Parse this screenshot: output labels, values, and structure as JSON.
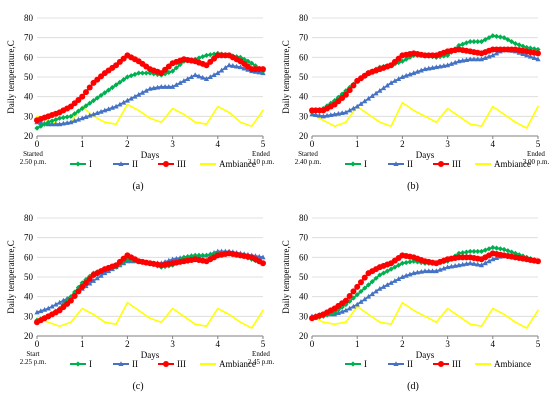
{
  "figure": {
    "panel_labels": [
      "(a)",
      "(b)",
      "(c)",
      "(d)"
    ]
  },
  "colors": {
    "I": "#00b050",
    "II": "#4472c4",
    "III": "#ff0000",
    "Ambiance": "#ffff00",
    "grid": "#d9d9d9",
    "axis": "#7f7f7f"
  },
  "legend": [
    "I",
    "II",
    "III",
    "Ambiance"
  ],
  "chart_data": [
    {
      "type": "line",
      "panel": "(a)",
      "ylabel": "Daily temperature,C",
      "xlabel": "Days",
      "xlim": [
        0,
        5
      ],
      "ylim": [
        20,
        80
      ],
      "xticks": [
        0,
        1,
        2,
        3,
        4,
        5
      ],
      "yticks": [
        20,
        30,
        40,
        50,
        60,
        70,
        80
      ],
      "grid": "horizontal",
      "legend_position": "bottom",
      "start_note": [
        "Started",
        "2.50 p.m."
      ],
      "end_note": [
        "Ended",
        "3.10 p.m."
      ],
      "series": [
        {
          "name": "I",
          "x": [
            0,
            0.25,
            0.5,
            0.75,
            1,
            1.25,
            1.5,
            1.75,
            2,
            2.25,
            2.5,
            2.75,
            3,
            3.25,
            3.5,
            3.75,
            4,
            4.25,
            4.5,
            4.75,
            5
          ],
          "y": [
            24,
            27,
            29,
            30,
            34,
            38,
            42,
            46,
            50,
            52,
            52,
            51,
            53,
            58,
            59,
            61,
            62,
            61,
            60,
            57,
            53
          ]
        },
        {
          "name": "II",
          "x": [
            0,
            0.25,
            0.5,
            0.75,
            1,
            1.25,
            1.5,
            1.75,
            2,
            2.25,
            2.5,
            2.75,
            3,
            3.25,
            3.5,
            3.75,
            4,
            4.25,
            4.5,
            4.75,
            5
          ],
          "y": [
            27,
            26,
            26,
            27,
            29,
            31,
            33,
            35,
            38,
            41,
            44,
            45,
            45,
            48,
            51,
            49,
            52,
            56,
            55,
            53,
            52
          ]
        },
        {
          "name": "III",
          "x": [
            0,
            0.25,
            0.5,
            0.75,
            1,
            1.25,
            1.5,
            1.75,
            2,
            2.25,
            2.5,
            2.75,
            3,
            3.25,
            3.5,
            3.75,
            4,
            4.25,
            4.5,
            4.75,
            5
          ],
          "y": [
            28,
            30,
            32,
            35,
            40,
            47,
            52,
            56,
            61,
            58,
            54,
            52,
            57,
            59,
            58,
            56,
            61,
            61,
            58,
            54,
            54
          ]
        },
        {
          "name": "Ambiance",
          "x": [
            0,
            0.25,
            0.5,
            0.75,
            1,
            1.25,
            1.5,
            1.75,
            2,
            2.25,
            2.5,
            2.75,
            3,
            3.25,
            3.5,
            3.75,
            4,
            4.25,
            4.5,
            4.75,
            5
          ],
          "y": [
            30,
            28,
            26,
            27,
            35,
            30,
            27,
            26,
            36,
            33,
            29,
            27,
            34,
            31,
            27,
            26,
            35,
            32,
            27,
            25,
            33
          ]
        }
      ]
    },
    {
      "type": "line",
      "panel": "(b)",
      "ylabel": "Daily temperature,C",
      "xlabel": "Days",
      "xlim": [
        0,
        5
      ],
      "ylim": [
        20,
        80
      ],
      "xticks": [
        0,
        1,
        2,
        3,
        4,
        5
      ],
      "yticks": [
        20,
        30,
        40,
        50,
        60,
        70,
        80
      ],
      "grid": "horizontal",
      "legend_position": "bottom",
      "start_note": [
        "Started",
        "2.40 p.m."
      ],
      "end_note": [
        "Ended",
        "3.00 p.m."
      ],
      "series": [
        {
          "name": "I",
          "x": [
            0,
            0.25,
            0.5,
            0.75,
            1,
            1.25,
            1.5,
            1.75,
            2,
            2.25,
            2.5,
            2.75,
            3,
            3.25,
            3.5,
            3.75,
            4,
            4.25,
            4.5,
            4.75,
            5
          ],
          "y": [
            32,
            34,
            38,
            43,
            48,
            52,
            55,
            56,
            58,
            61,
            61,
            60,
            61,
            66,
            68,
            68,
            71,
            70,
            67,
            65,
            64
          ]
        },
        {
          "name": "II",
          "x": [
            0,
            0.25,
            0.5,
            0.75,
            1,
            1.25,
            1.5,
            1.75,
            2,
            2.25,
            2.5,
            2.75,
            3,
            3.25,
            3.5,
            3.75,
            4,
            4.25,
            4.5,
            4.75,
            5
          ],
          "y": [
            31,
            30,
            31,
            32,
            35,
            39,
            43,
            47,
            50,
            52,
            54,
            55,
            56,
            58,
            59,
            59,
            61,
            64,
            63,
            61,
            59
          ]
        },
        {
          "name": "III",
          "x": [
            0,
            0.25,
            0.5,
            0.75,
            1,
            1.25,
            1.5,
            1.75,
            2,
            2.25,
            2.5,
            2.75,
            3,
            3.25,
            3.5,
            3.75,
            4,
            4.25,
            4.5,
            4.75,
            5
          ],
          "y": [
            33,
            33,
            36,
            41,
            48,
            52,
            54,
            56,
            61,
            62,
            61,
            61,
            63,
            64,
            63,
            62,
            64,
            64,
            64,
            63,
            62
          ]
        },
        {
          "name": "Ambiance",
          "x": [
            0,
            0.25,
            0.5,
            0.75,
            1,
            1.25,
            1.5,
            1.75,
            2,
            2.25,
            2.5,
            2.75,
            3,
            3.25,
            3.5,
            3.75,
            4,
            4.25,
            4.5,
            4.75,
            5
          ],
          "y": [
            31,
            28,
            25,
            27,
            35,
            31,
            27,
            25,
            37,
            33,
            30,
            27,
            34,
            30,
            26,
            25,
            35,
            31,
            27,
            24,
            35
          ]
        }
      ]
    },
    {
      "type": "line",
      "panel": "(c)",
      "ylabel": "Daily temperature,C",
      "xlabel": "Days",
      "xlim": [
        0,
        5
      ],
      "ylim": [
        20,
        80
      ],
      "xticks": [
        0,
        1,
        2,
        3,
        4,
        5
      ],
      "yticks": [
        20,
        30,
        40,
        50,
        60,
        70,
        80
      ],
      "grid": "horizontal",
      "legend_position": "bottom",
      "start_note": [
        "Start",
        "2.25 p.m."
      ],
      "end_note": [
        "Ended",
        "2.45 p.m."
      ],
      "series": [
        {
          "name": "I",
          "x": [
            0,
            0.25,
            0.5,
            0.75,
            1,
            1.25,
            1.5,
            1.75,
            2,
            2.25,
            2.5,
            2.75,
            3,
            3.25,
            3.5,
            3.75,
            4,
            4.25,
            4.5,
            4.75,
            5
          ],
          "y": [
            28,
            30,
            34,
            40,
            47,
            52,
            54,
            55,
            59,
            58,
            57,
            55,
            56,
            60,
            61,
            61,
            62,
            62,
            61,
            59,
            57
          ]
        },
        {
          "name": "II",
          "x": [
            0,
            0.25,
            0.5,
            0.75,
            1,
            1.25,
            1.5,
            1.75,
            2,
            2.25,
            2.5,
            2.75,
            3,
            3.25,
            3.5,
            3.75,
            4,
            4.25,
            4.5,
            4.75,
            5
          ],
          "y": [
            32,
            34,
            37,
            40,
            44,
            48,
            52,
            55,
            58,
            58,
            57,
            57,
            59,
            60,
            61,
            61,
            63,
            63,
            62,
            61,
            60
          ]
        },
        {
          "name": "III",
          "x": [
            0,
            0.25,
            0.5,
            0.75,
            1,
            1.25,
            1.5,
            1.75,
            2,
            2.25,
            2.5,
            2.75,
            3,
            3.25,
            3.5,
            3.75,
            4,
            4.25,
            4.5,
            4.75,
            5
          ],
          "y": [
            27,
            30,
            33,
            38,
            45,
            51,
            54,
            56,
            61,
            58,
            57,
            56,
            57,
            58,
            59,
            58,
            61,
            62,
            61,
            60,
            57
          ]
        },
        {
          "name": "Ambiance",
          "x": [
            0,
            0.25,
            0.5,
            0.75,
            1,
            1.25,
            1.5,
            1.75,
            2,
            2.25,
            2.5,
            2.75,
            3,
            3.25,
            3.5,
            3.75,
            4,
            4.25,
            4.5,
            4.75,
            5
          ],
          "y": [
            29,
            27,
            25,
            27,
            34,
            31,
            27,
            26,
            37,
            33,
            29,
            27,
            34,
            30,
            26,
            25,
            34,
            31,
            27,
            24,
            33
          ]
        }
      ]
    },
    {
      "type": "line",
      "panel": "(d)",
      "ylabel": "Daily temperature,C",
      "xlabel": "Days",
      "xlim": [
        0,
        5
      ],
      "ylim": [
        20,
        80
      ],
      "xticks": [
        0,
        1,
        2,
        3,
        4,
        5
      ],
      "yticks": [
        20,
        30,
        40,
        50,
        60,
        70,
        80
      ],
      "grid": "horizontal",
      "legend_position": "bottom",
      "series": [
        {
          "name": "I",
          "x": [
            0,
            0.25,
            0.5,
            0.75,
            1,
            1.25,
            1.5,
            1.75,
            2,
            2.25,
            2.5,
            2.75,
            3,
            3.25,
            3.5,
            3.75,
            4,
            4.25,
            4.5,
            4.75,
            5
          ],
          "y": [
            29,
            30,
            32,
            36,
            41,
            46,
            51,
            54,
            57,
            58,
            57,
            57,
            58,
            62,
            63,
            63,
            65,
            64,
            62,
            60,
            58
          ]
        },
        {
          "name": "II",
          "x": [
            0,
            0.25,
            0.5,
            0.75,
            1,
            1.25,
            1.5,
            1.75,
            2,
            2.25,
            2.5,
            2.75,
            3,
            3.25,
            3.5,
            3.75,
            4,
            4.25,
            4.5,
            4.75,
            5
          ],
          "y": [
            30,
            31,
            31,
            33,
            36,
            40,
            44,
            47,
            50,
            52,
            53,
            53,
            55,
            56,
            57,
            56,
            59,
            61,
            60,
            59,
            58
          ]
        },
        {
          "name": "III",
          "x": [
            0,
            0.25,
            0.5,
            0.75,
            1,
            1.25,
            1.5,
            1.75,
            2,
            2.25,
            2.5,
            2.75,
            3,
            3.25,
            3.5,
            3.75,
            4,
            4.25,
            4.5,
            4.75,
            5
          ],
          "y": [
            29,
            31,
            34,
            38,
            45,
            52,
            55,
            57,
            61,
            60,
            58,
            57,
            59,
            60,
            60,
            59,
            62,
            61,
            60,
            59,
            58
          ]
        },
        {
          "name": "Ambiance",
          "x": [
            0,
            0.25,
            0.5,
            0.75,
            1,
            1.25,
            1.5,
            1.75,
            2,
            2.25,
            2.5,
            2.75,
            3,
            3.25,
            3.5,
            3.75,
            4,
            4.25,
            4.5,
            4.75,
            5
          ],
          "y": [
            30,
            27,
            26,
            27,
            35,
            31,
            27,
            26,
            37,
            33,
            30,
            27,
            34,
            30,
            26,
            25,
            34,
            31,
            27,
            24,
            33
          ]
        }
      ]
    }
  ]
}
